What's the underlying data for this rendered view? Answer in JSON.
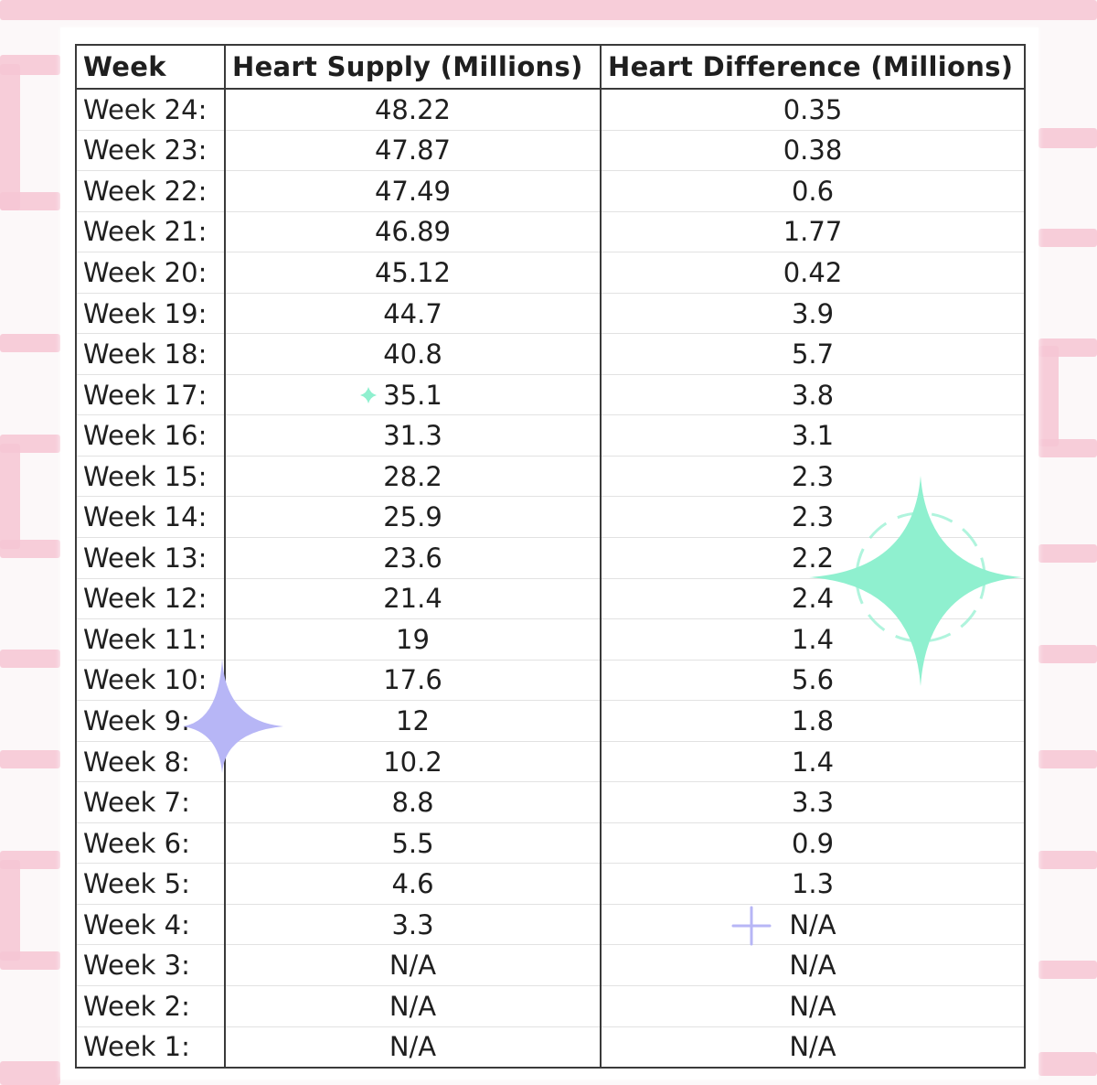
{
  "table": {
    "headers": [
      "Week",
      "Heart Supply (Millions)",
      "Heart Difference (Millions)"
    ],
    "rows": [
      {
        "week": "Week 24:",
        "supply": "48.22",
        "difference": "0.35"
      },
      {
        "week": "Week 23:",
        "supply": "47.87",
        "difference": "0.38"
      },
      {
        "week": "Week 22:",
        "supply": "47.49",
        "difference": "0.6"
      },
      {
        "week": "Week 21:",
        "supply": "46.89",
        "difference": "1.77"
      },
      {
        "week": "Week 20:",
        "supply": "45.12",
        "difference": "0.42"
      },
      {
        "week": "Week 19:",
        "supply": "44.7",
        "difference": "3.9"
      },
      {
        "week": "Week 18:",
        "supply": "40.8",
        "difference": "5.7"
      },
      {
        "week": "Week 17:",
        "supply": "35.1",
        "difference": "3.8"
      },
      {
        "week": "Week 16:",
        "supply": "31.3",
        "difference": "3.1"
      },
      {
        "week": "Week 15:",
        "supply": "28.2",
        "difference": "2.3"
      },
      {
        "week": "Week 14:",
        "supply": "25.9",
        "difference": "2.3"
      },
      {
        "week": "Week 13:",
        "supply": "23.6",
        "difference": "2.2"
      },
      {
        "week": "Week 12:",
        "supply": "21.4",
        "difference": "2.4"
      },
      {
        "week": "Week 11:",
        "supply": "19",
        "difference": "1.4"
      },
      {
        "week": "Week 10:",
        "supply": "17.6",
        "difference": "5.6"
      },
      {
        "week": "Week 9:",
        "supply": "12",
        "difference": "1.8"
      },
      {
        "week": "Week 8:",
        "supply": "10.2",
        "difference": "1.4"
      },
      {
        "week": "Week 7:",
        "supply": "8.8",
        "difference": "3.3"
      },
      {
        "week": "Week 6:",
        "supply": "5.5",
        "difference": "0.9"
      },
      {
        "week": "Week 5:",
        "supply": "4.6",
        "difference": "1.3"
      },
      {
        "week": "Week 4:",
        "supply": "3.3",
        "difference": "N/A"
      },
      {
        "week": "Week 3:",
        "supply": "N/A",
        "difference": "N/A"
      },
      {
        "week": "Week 2:",
        "supply": "N/A",
        "difference": "N/A"
      },
      {
        "week": "Week 1:",
        "supply": "N/A",
        "difference": "N/A"
      }
    ]
  },
  "colors": {
    "brick": "#f6c6d4",
    "sparkle_mint": "#8ff0cf",
    "sparkle_lavender": "#b7b6f6"
  },
  "decorations": [
    "sparkle-icon",
    "sparkle-icon",
    "sparkle-icon",
    "sparkle-icon"
  ]
}
